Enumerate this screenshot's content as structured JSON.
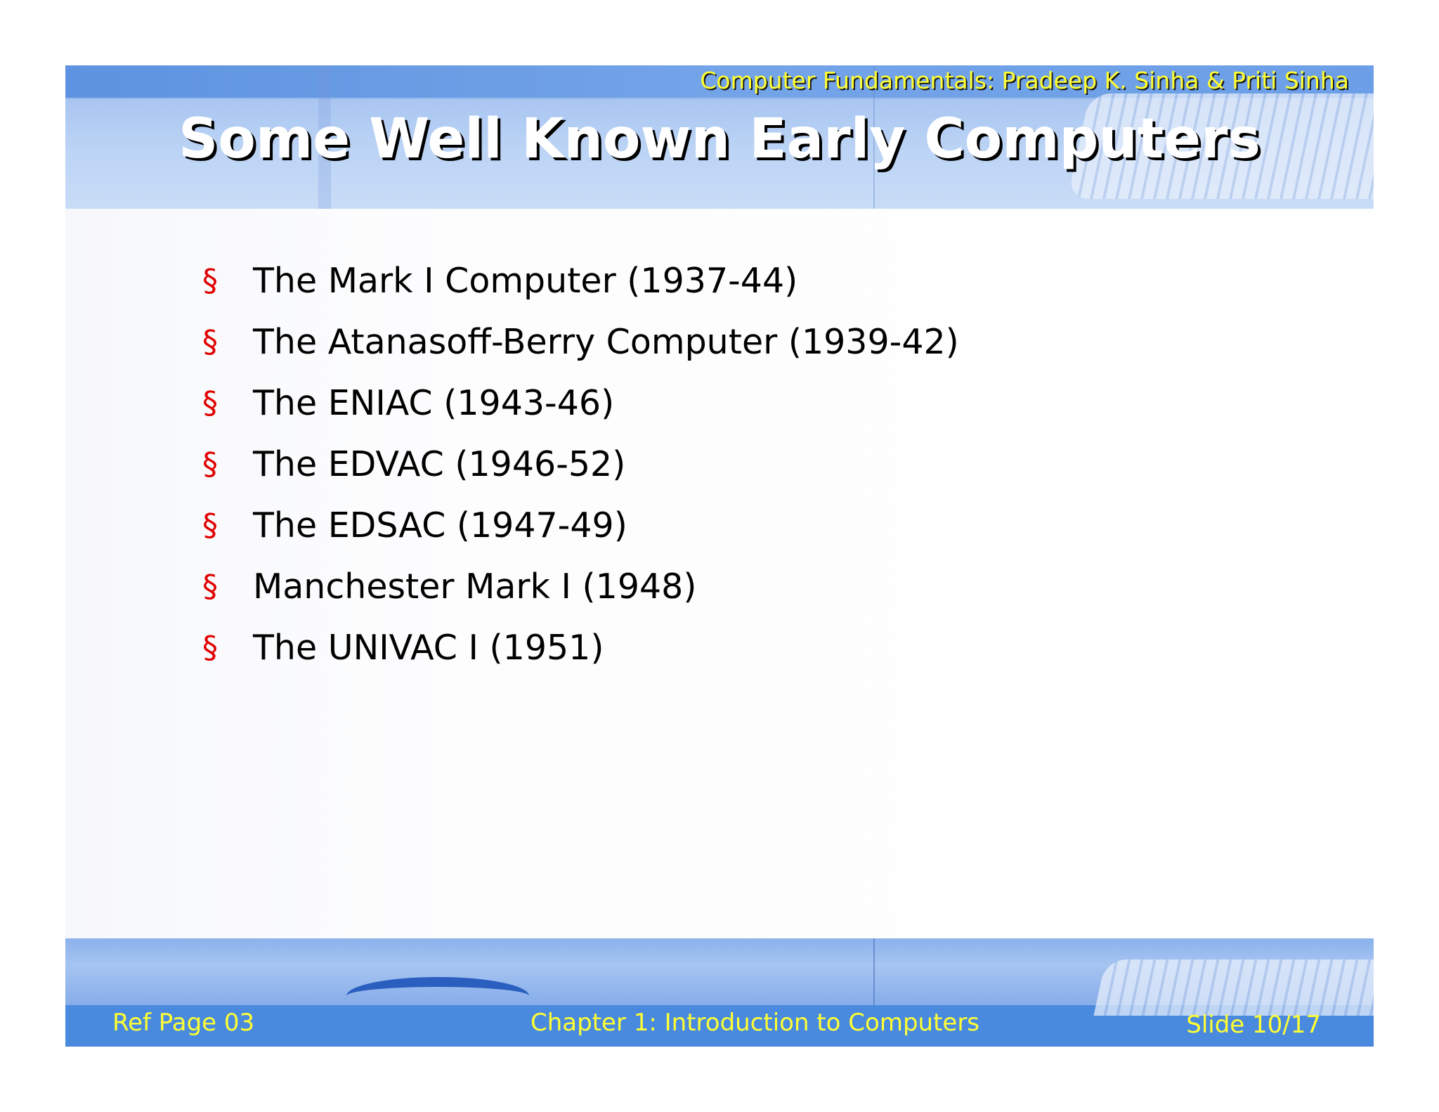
{
  "header": {
    "subtitle": "Computer Fundamentals: Pradeep K. Sinha & Priti Sinha",
    "title": "Some Well Known Early Computers"
  },
  "bullet_symbol": "§",
  "bullets": [
    "The Mark I Computer (1937-44)",
    "The Atanasoff-Berry Computer (1939-42)",
    "The ENIAC (1943-46)",
    "The EDVAC (1946-52)",
    "The EDSAC (1947-49)",
    "Manchester Mark I (1948)",
    "The UNIVAC I (1951)"
  ],
  "footer": {
    "ref_page": "Ref Page 03",
    "chapter": "Chapter 1: Introduction to Computers",
    "slide": "Slide 10/17"
  },
  "colors": {
    "accent_text": "#ffff33",
    "bullet": "#e00000",
    "footer_band": "#4a8ade"
  }
}
